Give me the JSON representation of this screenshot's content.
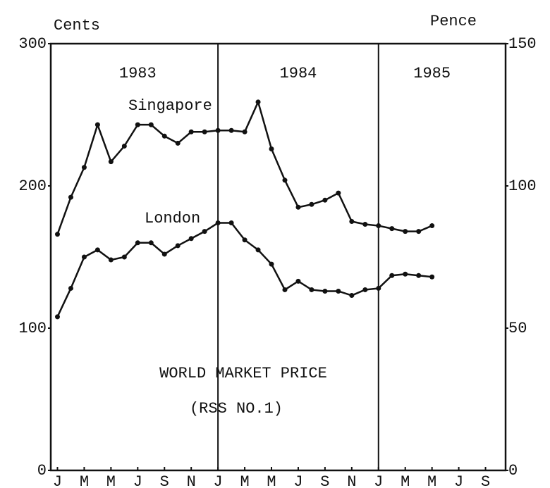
{
  "chart_data": {
    "type": "line",
    "y_label": "Cents",
    "y2_label": "Pence",
    "year_labels": [
      {
        "text": "1983",
        "x": 6
      },
      {
        "text": "1984",
        "x": 18
      },
      {
        "text": "1985",
        "x": 28
      }
    ],
    "annotations": [
      "WORLD MARKET PRICE",
      "(RSS NO.1)"
    ],
    "x_dividers": [
      12,
      24
    ],
    "x": [
      0,
      1,
      2,
      3,
      4,
      5,
      6,
      7,
      8,
      9,
      10,
      11,
      12,
      13,
      14,
      15,
      16,
      17,
      18,
      19,
      20,
      21,
      22,
      23,
      24,
      25,
      26,
      27,
      28
    ],
    "xlim": [
      -0.5,
      33.5
    ],
    "xticks": [
      {
        "value": 0,
        "label": "J"
      },
      {
        "value": 2,
        "label": "M"
      },
      {
        "value": 4,
        "label": "M"
      },
      {
        "value": 6,
        "label": "J"
      },
      {
        "value": 8,
        "label": "S"
      },
      {
        "value": 10,
        "label": "N"
      },
      {
        "value": 12,
        "label": "J"
      },
      {
        "value": 14,
        "label": "M"
      },
      {
        "value": 16,
        "label": "M"
      },
      {
        "value": 18,
        "label": "J"
      },
      {
        "value": 20,
        "label": "S"
      },
      {
        "value": 22,
        "label": "N"
      },
      {
        "value": 24,
        "label": "J"
      },
      {
        "value": 26,
        "label": "M"
      },
      {
        "value": 28,
        "label": "M"
      },
      {
        "value": 30,
        "label": "J"
      },
      {
        "value": 32,
        "label": "S"
      }
    ],
    "ylim": [
      0,
      300
    ],
    "yticks": [
      0,
      100,
      200,
      300
    ],
    "y2lim": [
      0,
      150
    ],
    "y2ticks": [
      0,
      50,
      100,
      150
    ],
    "series": [
      {
        "name": "Singapore",
        "color": "#111111",
        "values": [
          166,
          192,
          213,
          243,
          217,
          228,
          243,
          243,
          235,
          230,
          238,
          238,
          239,
          239,
          238,
          259,
          226,
          204,
          185,
          187,
          190,
          195,
          175,
          173,
          172,
          170,
          168,
          168,
          172
        ]
      },
      {
        "name": "London",
        "color": "#111111",
        "values": [
          108,
          128,
          150,
          155,
          148,
          150,
          160,
          160,
          152,
          158,
          163,
          168,
          174,
          174,
          162,
          155,
          145,
          127,
          133,
          127,
          126,
          126,
          123,
          127,
          128,
          137,
          138,
          137,
          136
        ]
      }
    ]
  }
}
